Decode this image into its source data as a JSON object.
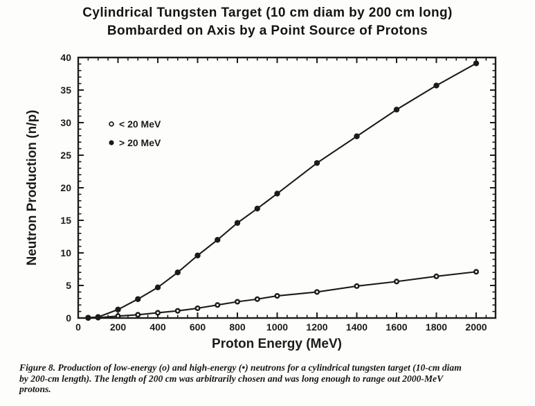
{
  "page": {
    "title_line1": "Cylindrical Tungsten Target (10 cm diam by 200 cm long)",
    "title_line2": "Bombarded on Axis by a Point Source of Protons"
  },
  "colors": {
    "ink": "#1b1b1b",
    "paper": "#fdfdfb"
  },
  "caption": {
    "lines": [
      "Figure 8. Production of low-energy (o) and high-energy (•) neutrons for a cylindrical tungsten target (10-cm diam",
      "by 200-cm length). The length of 200 cm was arbitrarily chosen and was long enough to range out 2000-MeV",
      "protons."
    ]
  },
  "chart_data": {
    "type": "line",
    "title": "Cylindrical Tungsten Target (10 cm diam by 200 cm long) Bombarded on Axis by a Point Source of Protons",
    "xlabel": "Proton Energy (MeV)",
    "ylabel": "Neutron Production (n/p)",
    "xlim": [
      0,
      2000
    ],
    "ylim": [
      0,
      40
    ],
    "x_major_tick_step": 200,
    "x_minor_tick_step": 50,
    "y_major_tick_step": 5,
    "y_minor_tick_step": 1,
    "x_tick_labels": [
      "0",
      "200",
      "400",
      "600",
      "800",
      "1000",
      "1200",
      "1400",
      "1600",
      "1800",
      "2000"
    ],
    "y_tick_labels": [
      "0",
      "5",
      "10",
      "15",
      "20",
      "25",
      "30",
      "35",
      "40"
    ],
    "grid": false,
    "frame": "box-with-inward-ticks",
    "legend": {
      "position": "upper-left-inside",
      "entries": [
        {
          "marker": "open-circle",
          "label": "< 20 MeV"
        },
        {
          "marker": "filled-circle",
          "label": "> 20 MeV"
        }
      ]
    },
    "x": [
      50,
      100,
      200,
      300,
      400,
      500,
      600,
      700,
      800,
      900,
      1000,
      1200,
      1400,
      1600,
      1800,
      2000
    ],
    "series": [
      {
        "name": "low-energy neutrons (< 20 MeV)",
        "marker": "open-circle",
        "values": [
          0.0,
          0.05,
          0.3,
          0.5,
          0.8,
          1.1,
          1.5,
          2.0,
          2.5,
          2.9,
          3.4,
          4.0,
          4.9,
          5.6,
          6.4,
          7.1
        ]
      },
      {
        "name": "high-energy neutrons (> 20 MeV)",
        "marker": "filled-circle",
        "values": [
          0.05,
          0.15,
          1.3,
          2.9,
          4.7,
          7.0,
          9.6,
          12.0,
          14.6,
          16.8,
          19.1,
          23.8,
          27.9,
          32.0,
          35.7,
          39.1
        ]
      }
    ]
  }
}
